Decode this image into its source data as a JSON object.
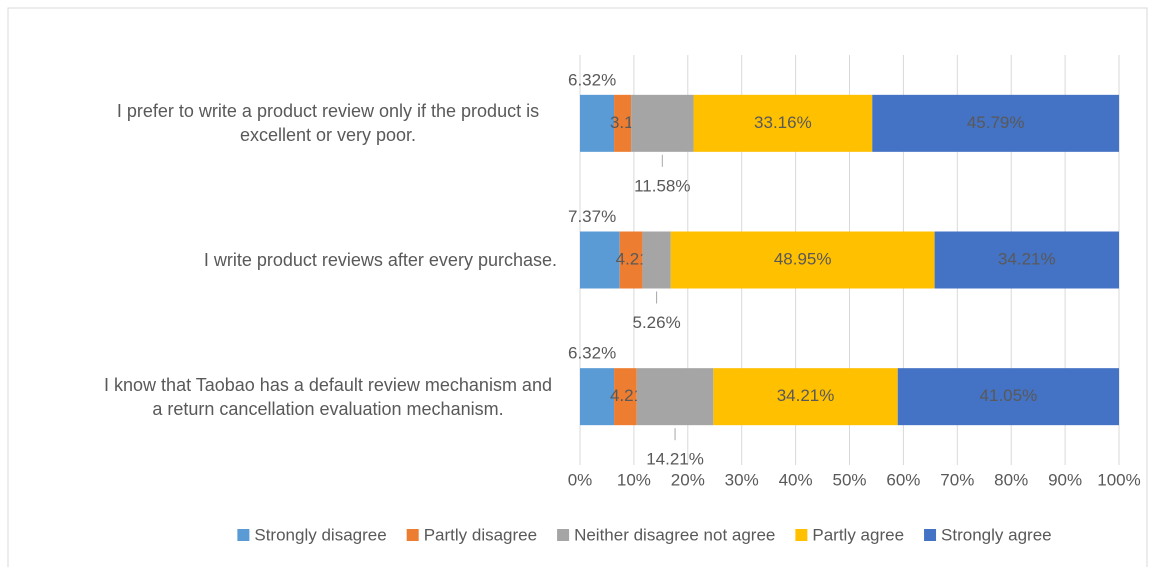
{
  "chart_data": {
    "type": "stacked_bar_percent",
    "categories": [
      "I prefer to write a product review only if the product is excellent or very poor.",
      "I write product reviews after every purchase.",
      "I know that Taobao has a default review mechanism and a return cancellation evaluation mechanism."
    ],
    "series": [
      {
        "name": "Strongly disagree",
        "color": "#5b9bd5",
        "values": [
          6.32,
          7.37,
          6.32
        ],
        "value_labels": [
          "6.32%",
          "7.37%",
          "6.32%"
        ]
      },
      {
        "name": "Partly disagree",
        "color": "#ed7d31",
        "values": [
          3.16,
          4.21,
          4.21
        ],
        "value_labels": [
          "3.16%",
          "4.21%",
          "4.21%"
        ]
      },
      {
        "name": "Neither disagree not agree",
        "color": "#a5a5a5",
        "values": [
          11.58,
          5.26,
          14.21
        ],
        "value_labels": [
          "11.58%",
          "5.26%",
          "14.21%"
        ]
      },
      {
        "name": "Partly agree",
        "color": "#ffc000",
        "values": [
          33.16,
          48.95,
          34.21
        ],
        "value_labels": [
          "33.16%",
          "48.95%",
          "34.21%"
        ]
      },
      {
        "name": "Strongly agree",
        "color": "#4472c4",
        "values": [
          45.79,
          34.21,
          41.05
        ],
        "value_labels": [
          "45.79%",
          "34.21%",
          "41.05%"
        ]
      }
    ],
    "xlim": [
      0,
      100
    ],
    "xticks": [
      {
        "value": 0,
        "label": "0%"
      },
      {
        "value": 10,
        "label": "10%"
      },
      {
        "value": 20,
        "label": "20%"
      },
      {
        "value": 30,
        "label": "30%"
      },
      {
        "value": 40,
        "label": "40%"
      },
      {
        "value": 50,
        "label": "50%"
      },
      {
        "value": 60,
        "label": "60%"
      },
      {
        "value": 70,
        "label": "70%"
      },
      {
        "value": 80,
        "label": "80%"
      },
      {
        "value": 90,
        "label": "90%"
      },
      {
        "value": 100,
        "label": "100%"
      }
    ],
    "grid": true,
    "legend": "bottom"
  }
}
